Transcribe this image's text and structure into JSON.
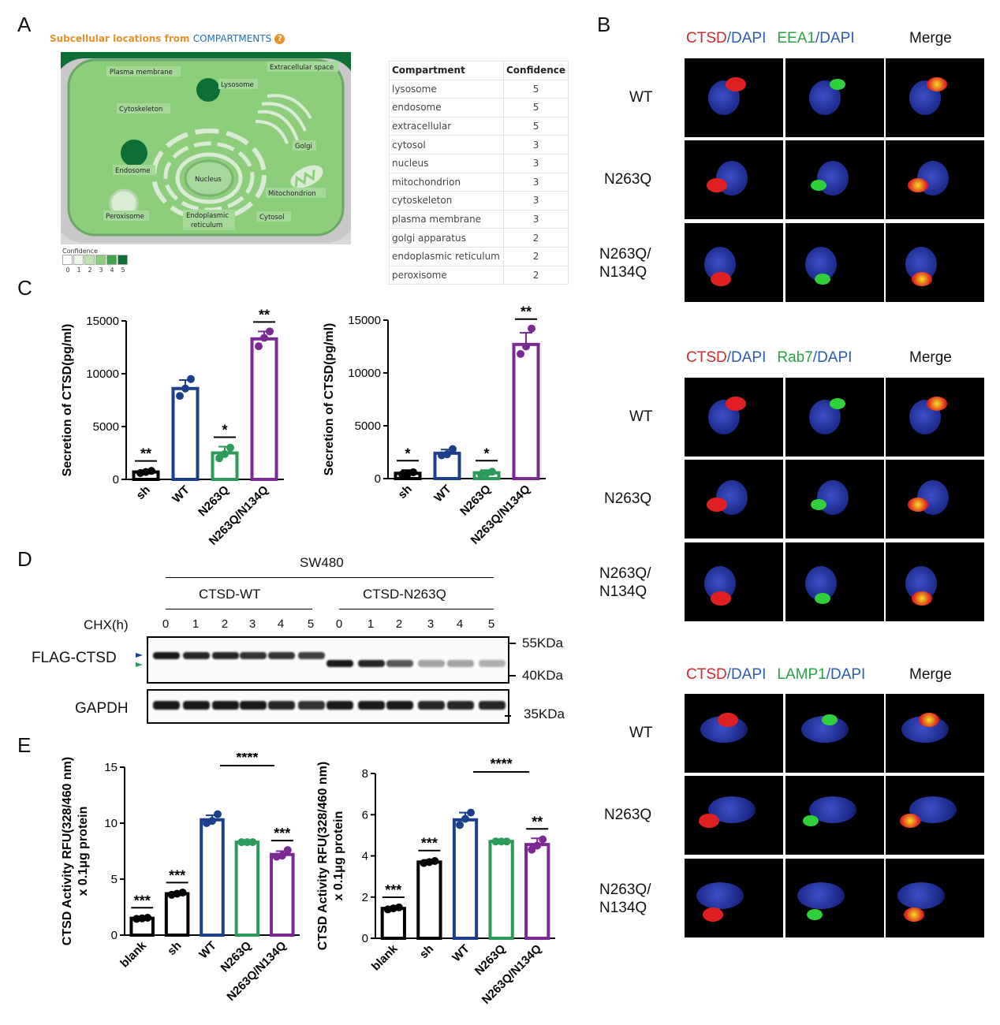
{
  "panels": {
    "A": "A",
    "B": "B",
    "C": "C",
    "D": "D",
    "E": "E"
  },
  "panelA": {
    "title_part1": "Subcellular locations from ",
    "title_part2": "COMPARTMENTS",
    "cell_labels": [
      "Plasma membrane",
      "Extracellular space",
      "Lysosome",
      "Cytoskeleton",
      "Golgi",
      "Endosome",
      "Nucleus",
      "Mitochondrion",
      "Peroxisome",
      "Endoplasmic",
      "reticulum",
      "Cytosol"
    ],
    "legend_title": "Confidence",
    "legend_values": [
      "0",
      "1",
      "2",
      "3",
      "4",
      "5"
    ],
    "legend_colors": [
      "#ffffff",
      "#eaf5e6",
      "#bfe2b2",
      "#8cce7c",
      "#3fa54b",
      "#0f6e36"
    ],
    "table": {
      "headers": [
        "Compartment",
        "Confidence"
      ],
      "rows": [
        {
          "name": "lysosome",
          "conf": "5"
        },
        {
          "name": "endosome",
          "conf": "5"
        },
        {
          "name": "extracellular",
          "conf": "5"
        },
        {
          "name": "cytosol",
          "conf": "3"
        },
        {
          "name": "nucleus",
          "conf": "3"
        },
        {
          "name": "mitochondrion",
          "conf": "3"
        },
        {
          "name": "cytoskeleton",
          "conf": "3"
        },
        {
          "name": "plasma membrane",
          "conf": "3"
        },
        {
          "name": "golgi apparatus",
          "conf": "2"
        },
        {
          "name": "endoplasmic reticulum",
          "conf": "2"
        },
        {
          "name": "peroxisome",
          "conf": "2"
        }
      ]
    }
  },
  "panelB": {
    "groups": [
      {
        "marker": "EEA1",
        "rows": [
          "WT",
          "N263Q",
          "N263Q/\nN134Q"
        ]
      },
      {
        "marker": "Rab7",
        "rows": [
          "WT",
          "N263Q",
          "N263Q/\nN134Q"
        ]
      },
      {
        "marker": "LAMP1",
        "rows": [
          "WT",
          "N263Q",
          "N263Q/\nN134Q"
        ]
      }
    ],
    "ctsd": "CTSD",
    "dapi": "DAPI",
    "slash": "/",
    "merge": "Merge"
  },
  "chart_data": [
    {
      "type": "bar",
      "panel": "C-left",
      "categories": [
        "sh",
        "WT",
        "N263Q",
        "N263Q/N134Q"
      ],
      "values": [
        700,
        8600,
        2500,
        13300
      ],
      "points": [
        [
          600,
          700,
          800
        ],
        [
          7900,
          8600,
          9500
        ],
        [
          2000,
          2400,
          3000
        ],
        [
          12600,
          13400,
          14000
        ]
      ],
      "errors": [
        150,
        800,
        600,
        700
      ],
      "significance": [
        "**",
        "",
        "*",
        "**"
      ],
      "ylabel": "Secretion of CTSD(pg/ml)",
      "ylim": [
        0,
        15000
      ],
      "yticks": [
        0,
        5000,
        10000,
        15000
      ],
      "colors": [
        "#000000",
        "#1c3f8c",
        "#2b9a5a",
        "#7b2a93"
      ]
    },
    {
      "type": "bar",
      "panel": "C-right",
      "categories": [
        "sh",
        "WT",
        "N263Q",
        "N263Q/N134Q"
      ],
      "values": [
        500,
        2400,
        550,
        12700
      ],
      "points": [
        [
          400,
          450,
          600
        ],
        [
          2200,
          2300,
          2800
        ],
        [
          400,
          500,
          650
        ],
        [
          11800,
          12500,
          14200
        ]
      ],
      "errors": [
        300,
        350,
        250,
        1100
      ],
      "significance": [
        "*",
        "",
        "*",
        "**"
      ],
      "ylabel": "Secretion of CTSD(pg/ml)",
      "ylim": [
        0,
        15000
      ],
      "yticks": [
        0,
        5000,
        10000,
        15000
      ],
      "colors": [
        "#000000",
        "#1c3f8c",
        "#2b9a5a",
        "#7b2a93"
      ]
    },
    {
      "type": "bar",
      "panel": "E-left",
      "categories": [
        "blank",
        "sh",
        "WT",
        "N263Q",
        "N263Q/N134Q"
      ],
      "values": [
        1.5,
        3.7,
        10.3,
        8.3,
        7.2
      ],
      "points": [
        [
          1.45,
          1.5,
          1.55
        ],
        [
          3.6,
          3.7,
          3.8
        ],
        [
          10.0,
          10.2,
          10.8
        ],
        [
          8.3,
          8.3,
          8.3
        ],
        [
          7.0,
          7.1,
          7.6
        ]
      ],
      "errors": [
        0.1,
        0.15,
        0.4,
        0.05,
        0.3
      ],
      "significance": [
        "***",
        "***",
        "",
        "",
        "***"
      ],
      "bracket": {
        "from": 2,
        "to": 4,
        "label": "****"
      },
      "ylabel": "CTSD Activity RFU(328/460 nm)\nx 0.1μg protein",
      "ylim": [
        0,
        15
      ],
      "yticks": [
        0,
        5,
        10,
        15
      ],
      "colors": [
        "#000000",
        "#000000",
        "#1c3f8c",
        "#2b9a5a",
        "#7b2a93"
      ]
    },
    {
      "type": "bar",
      "panel": "E-right",
      "categories": [
        "blank",
        "sh",
        "WT",
        "N263Q",
        "N263Q/N134Q"
      ],
      "values": [
        1.45,
        3.7,
        5.75,
        4.7,
        4.55
      ],
      "points": [
        [
          1.4,
          1.45,
          1.5
        ],
        [
          3.65,
          3.7,
          3.75
        ],
        [
          5.5,
          5.8,
          6.1
        ],
        [
          4.7,
          4.7,
          4.7
        ],
        [
          4.3,
          4.5,
          4.8
        ]
      ],
      "errors": [
        0.08,
        0.1,
        0.35,
        0.05,
        0.3
      ],
      "significance": [
        "***",
        "***",
        "",
        "",
        "**"
      ],
      "bracket": {
        "from": 2,
        "to": 4,
        "label": "****"
      },
      "ylabel": "CTSD Activity RFU(328/460 nm)\nx 0.1μg protein",
      "ylim": [
        0,
        8
      ],
      "yticks": [
        0,
        2,
        4,
        6,
        8
      ],
      "colors": [
        "#000000",
        "#000000",
        "#1c3f8c",
        "#2b9a5a",
        "#7b2a93"
      ]
    }
  ],
  "panelD": {
    "cell_line": "SW480",
    "group1": "CTSD-WT",
    "group2": "CTSD-N263Q",
    "chx_label": "CHX(h)",
    "timepoints": [
      "0",
      "1",
      "2",
      "3",
      "4",
      "5",
      "0",
      "1",
      "2",
      "3",
      "4",
      "5"
    ],
    "flag_label": "FLAG-CTSD",
    "gapdh_label": "GAPDH",
    "mw": [
      "55KDa",
      "40KDa",
      "35KDa"
    ],
    "flag_intensity": [
      0.9,
      0.85,
      0.85,
      0.8,
      0.8,
      0.75,
      0.9,
      0.85,
      0.65,
      0.35,
      0.35,
      0.3
    ],
    "gapdh_intensity": [
      0.9,
      0.9,
      0.9,
      0.9,
      0.85,
      0.8,
      0.9,
      0.9,
      0.9,
      0.85,
      0.85,
      0.85
    ]
  }
}
